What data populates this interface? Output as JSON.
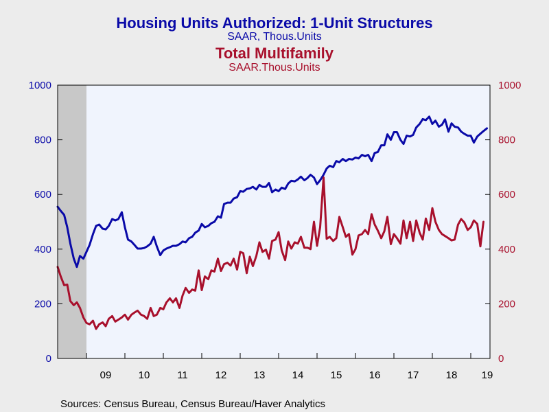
{
  "chart_data": {
    "type": "line",
    "title": "Housing Units Authorized: 1-Unit Structures",
    "subtitle": "SAAR, Thous.Units",
    "title2": "Total Multifamily",
    "subtitle2": "SAAR.Thous.Units",
    "source": "Sources:  Census Bureau, Census Bureau/Haver Analytics",
    "x_tick_labels": [
      "09",
      "10",
      "11",
      "12",
      "13",
      "14",
      "15",
      "16",
      "17",
      "18",
      "19"
    ],
    "y_left_ticks": [
      "0",
      "200",
      "400",
      "600",
      "800",
      "1000"
    ],
    "y_right_ticks": [
      "0",
      "200",
      "400",
      "600",
      "800",
      "1000"
    ],
    "ylim": [
      0,
      1000
    ],
    "xlim": [
      2008.25,
      2019.5
    ],
    "grid": false,
    "shaded_region": [
      2008.25,
      2009.0
    ],
    "colors": {
      "series1": "#0a0aa8",
      "series2": "#a8102c",
      "plot_bg": "#f0f4fd",
      "recession": "#c8c8c8",
      "page_bg": "#ececec"
    },
    "series": [
      {
        "color": "#0a0aa8",
        "axis": "left",
        "points": [
          [
            2008.25,
            555
          ],
          [
            2008.33,
            540
          ],
          [
            2008.42,
            525
          ],
          [
            2008.5,
            480
          ],
          [
            2008.58,
            420
          ],
          [
            2008.67,
            365
          ],
          [
            2008.75,
            335
          ],
          [
            2008.83,
            375
          ],
          [
            2008.92,
            365
          ],
          [
            2009.0,
            390
          ],
          [
            2009.08,
            415
          ],
          [
            2009.17,
            455
          ],
          [
            2009.25,
            485
          ],
          [
            2009.33,
            490
          ],
          [
            2009.42,
            475
          ],
          [
            2009.5,
            472
          ],
          [
            2009.58,
            485
          ],
          [
            2009.67,
            510
          ],
          [
            2009.75,
            505
          ],
          [
            2009.83,
            510
          ],
          [
            2009.92,
            535
          ],
          [
            2010.0,
            480
          ],
          [
            2010.08,
            435
          ],
          [
            2010.17,
            428
          ],
          [
            2010.25,
            415
          ],
          [
            2010.33,
            402
          ],
          [
            2010.42,
            402
          ],
          [
            2010.5,
            404
          ],
          [
            2010.58,
            410
          ],
          [
            2010.67,
            420
          ],
          [
            2010.75,
            445
          ],
          [
            2010.83,
            410
          ],
          [
            2010.92,
            378
          ],
          [
            2011.0,
            395
          ],
          [
            2011.08,
            402
          ],
          [
            2011.17,
            407
          ],
          [
            2011.25,
            412
          ],
          [
            2011.33,
            412
          ],
          [
            2011.42,
            418
          ],
          [
            2011.5,
            428
          ],
          [
            2011.58,
            425
          ],
          [
            2011.67,
            440
          ],
          [
            2011.75,
            445
          ],
          [
            2011.83,
            460
          ],
          [
            2011.92,
            468
          ],
          [
            2012.0,
            492
          ],
          [
            2012.08,
            480
          ],
          [
            2012.17,
            485
          ],
          [
            2012.25,
            495
          ],
          [
            2012.33,
            500
          ],
          [
            2012.42,
            520
          ],
          [
            2012.5,
            515
          ],
          [
            2012.58,
            565
          ],
          [
            2012.67,
            570
          ],
          [
            2012.75,
            570
          ],
          [
            2012.83,
            585
          ],
          [
            2012.92,
            590
          ],
          [
            2013.0,
            612
          ],
          [
            2013.08,
            610
          ],
          [
            2013.17,
            620
          ],
          [
            2013.25,
            622
          ],
          [
            2013.33,
            628
          ],
          [
            2013.42,
            618
          ],
          [
            2013.5,
            635
          ],
          [
            2013.58,
            628
          ],
          [
            2013.67,
            628
          ],
          [
            2013.75,
            642
          ],
          [
            2013.83,
            608
          ],
          [
            2013.92,
            618
          ],
          [
            2014.0,
            612
          ],
          [
            2014.08,
            625
          ],
          [
            2014.17,
            620
          ],
          [
            2014.25,
            640
          ],
          [
            2014.33,
            650
          ],
          [
            2014.42,
            648
          ],
          [
            2014.5,
            655
          ],
          [
            2014.58,
            665
          ],
          [
            2014.67,
            652
          ],
          [
            2014.75,
            660
          ],
          [
            2014.83,
            672
          ],
          [
            2014.92,
            662
          ],
          [
            2015.0,
            638
          ],
          [
            2015.08,
            652
          ],
          [
            2015.17,
            672
          ],
          [
            2015.25,
            695
          ],
          [
            2015.33,
            705
          ],
          [
            2015.42,
            700
          ],
          [
            2015.5,
            722
          ],
          [
            2015.58,
            718
          ],
          [
            2015.67,
            730
          ],
          [
            2015.75,
            722
          ],
          [
            2015.83,
            730
          ],
          [
            2015.92,
            728
          ],
          [
            2016.0,
            735
          ],
          [
            2016.08,
            732
          ],
          [
            2016.17,
            745
          ],
          [
            2016.25,
            740
          ],
          [
            2016.33,
            745
          ],
          [
            2016.42,
            722
          ],
          [
            2016.5,
            752
          ],
          [
            2016.58,
            755
          ],
          [
            2016.67,
            780
          ],
          [
            2016.75,
            780
          ],
          [
            2016.83,
            820
          ],
          [
            2016.92,
            800
          ],
          [
            2017.0,
            828
          ],
          [
            2017.08,
            828
          ],
          [
            2017.17,
            800
          ],
          [
            2017.25,
            785
          ],
          [
            2017.33,
            815
          ],
          [
            2017.42,
            812
          ],
          [
            2017.5,
            818
          ],
          [
            2017.58,
            845
          ],
          [
            2017.67,
            858
          ],
          [
            2017.75,
            876
          ],
          [
            2017.83,
            872
          ],
          [
            2017.92,
            885
          ],
          [
            2018.0,
            858
          ],
          [
            2018.08,
            870
          ],
          [
            2018.17,
            848
          ],
          [
            2018.25,
            855
          ],
          [
            2018.33,
            875
          ],
          [
            2018.42,
            830
          ],
          [
            2018.5,
            860
          ],
          [
            2018.58,
            848
          ],
          [
            2018.67,
            845
          ],
          [
            2018.75,
            830
          ],
          [
            2018.83,
            822
          ],
          [
            2018.92,
            815
          ],
          [
            2019.0,
            815
          ],
          [
            2019.08,
            790
          ],
          [
            2019.17,
            812
          ],
          [
            2019.25,
            822
          ],
          [
            2019.33,
            832
          ],
          [
            2019.42,
            842
          ]
        ]
      },
      {
        "color": "#a8102c",
        "axis": "right",
        "points": [
          [
            2008.25,
            335
          ],
          [
            2008.33,
            300
          ],
          [
            2008.42,
            268
          ],
          [
            2008.5,
            270
          ],
          [
            2008.58,
            210
          ],
          [
            2008.67,
            195
          ],
          [
            2008.75,
            205
          ],
          [
            2008.83,
            185
          ],
          [
            2008.92,
            150
          ],
          [
            2009.0,
            130
          ],
          [
            2009.08,
            125
          ],
          [
            2009.17,
            138
          ],
          [
            2009.25,
            108
          ],
          [
            2009.33,
            125
          ],
          [
            2009.42,
            132
          ],
          [
            2009.5,
            118
          ],
          [
            2009.58,
            145
          ],
          [
            2009.67,
            155
          ],
          [
            2009.75,
            135
          ],
          [
            2009.83,
            142
          ],
          [
            2009.92,
            150
          ],
          [
            2010.0,
            160
          ],
          [
            2010.08,
            142
          ],
          [
            2010.17,
            160
          ],
          [
            2010.25,
            168
          ],
          [
            2010.33,
            175
          ],
          [
            2010.42,
            160
          ],
          [
            2010.5,
            155
          ],
          [
            2010.58,
            145
          ],
          [
            2010.67,
            185
          ],
          [
            2010.75,
            155
          ],
          [
            2010.83,
            160
          ],
          [
            2010.92,
            185
          ],
          [
            2011.0,
            180
          ],
          [
            2011.08,
            205
          ],
          [
            2011.17,
            220
          ],
          [
            2011.25,
            205
          ],
          [
            2011.33,
            220
          ],
          [
            2011.42,
            185
          ],
          [
            2011.5,
            230
          ],
          [
            2011.58,
            258
          ],
          [
            2011.67,
            240
          ],
          [
            2011.75,
            252
          ],
          [
            2011.83,
            248
          ],
          [
            2011.92,
            322
          ],
          [
            2012.0,
            250
          ],
          [
            2012.08,
            300
          ],
          [
            2012.17,
            290
          ],
          [
            2012.25,
            322
          ],
          [
            2012.33,
            318
          ],
          [
            2012.42,
            365
          ],
          [
            2012.5,
            320
          ],
          [
            2012.58,
            345
          ],
          [
            2012.67,
            350
          ],
          [
            2012.75,
            340
          ],
          [
            2012.83,
            365
          ],
          [
            2012.92,
            325
          ],
          [
            2013.0,
            390
          ],
          [
            2013.08,
            385
          ],
          [
            2013.17,
            312
          ],
          [
            2013.25,
            372
          ],
          [
            2013.33,
            338
          ],
          [
            2013.42,
            375
          ],
          [
            2013.5,
            425
          ],
          [
            2013.58,
            390
          ],
          [
            2013.67,
            398
          ],
          [
            2013.75,
            365
          ],
          [
            2013.83,
            430
          ],
          [
            2013.92,
            435
          ],
          [
            2014.0,
            462
          ],
          [
            2014.08,
            395
          ],
          [
            2014.17,
            360
          ],
          [
            2014.25,
            428
          ],
          [
            2014.33,
            402
          ],
          [
            2014.42,
            425
          ],
          [
            2014.5,
            420
          ],
          [
            2014.58,
            445
          ],
          [
            2014.67,
            405
          ],
          [
            2014.75,
            405
          ],
          [
            2014.83,
            400
          ],
          [
            2014.92,
            500
          ],
          [
            2015.0,
            412
          ],
          [
            2015.08,
            480
          ],
          [
            2015.17,
            662
          ],
          [
            2015.25,
            438
          ],
          [
            2015.33,
            445
          ],
          [
            2015.42,
            430
          ],
          [
            2015.5,
            440
          ],
          [
            2015.58,
            518
          ],
          [
            2015.67,
            480
          ],
          [
            2015.75,
            445
          ],
          [
            2015.83,
            455
          ],
          [
            2015.92,
            380
          ],
          [
            2016.0,
            400
          ],
          [
            2016.08,
            450
          ],
          [
            2016.17,
            455
          ],
          [
            2016.25,
            470
          ],
          [
            2016.33,
            455
          ],
          [
            2016.42,
            528
          ],
          [
            2016.5,
            490
          ],
          [
            2016.58,
            468
          ],
          [
            2016.67,
            440
          ],
          [
            2016.75,
            465
          ],
          [
            2016.83,
            518
          ],
          [
            2016.92,
            418
          ],
          [
            2017.0,
            455
          ],
          [
            2017.08,
            440
          ],
          [
            2017.17,
            420
          ],
          [
            2017.25,
            505
          ],
          [
            2017.33,
            440
          ],
          [
            2017.42,
            500
          ],
          [
            2017.5,
            430
          ],
          [
            2017.58,
            505
          ],
          [
            2017.67,
            460
          ],
          [
            2017.75,
            435
          ],
          [
            2017.83,
            512
          ],
          [
            2017.92,
            470
          ],
          [
            2018.0,
            550
          ],
          [
            2018.08,
            500
          ],
          [
            2018.17,
            470
          ],
          [
            2018.25,
            455
          ],
          [
            2018.33,
            448
          ],
          [
            2018.42,
            440
          ],
          [
            2018.5,
            432
          ],
          [
            2018.58,
            435
          ],
          [
            2018.67,
            490
          ],
          [
            2018.75,
            510
          ],
          [
            2018.83,
            498
          ],
          [
            2018.92,
            470
          ],
          [
            2019.0,
            480
          ],
          [
            2019.08,
            505
          ],
          [
            2019.17,
            492
          ],
          [
            2019.25,
            410
          ],
          [
            2019.33,
            500
          ]
        ]
      }
    ]
  }
}
